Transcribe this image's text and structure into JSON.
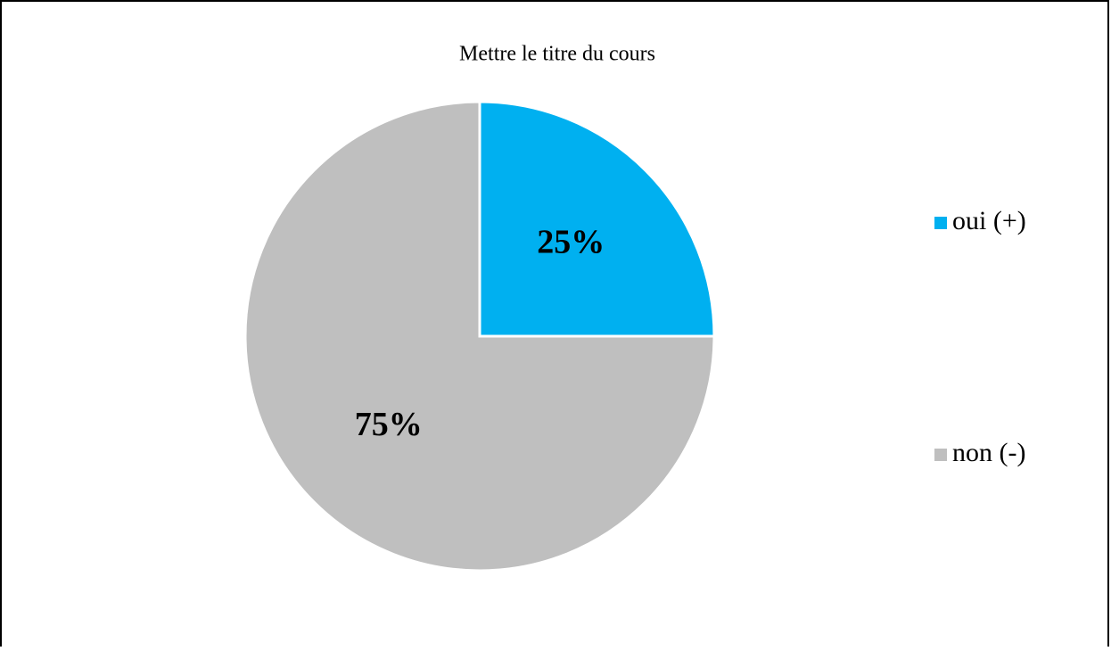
{
  "chart_data": {
    "type": "pie",
    "title": "Mettre le titre du cours",
    "categories": [
      "oui (+)",
      "non (-)"
    ],
    "values": [
      25,
      75
    ],
    "value_labels": [
      "25%",
      "75%"
    ],
    "colors": [
      "#00B0F0",
      "#BFBFBF"
    ],
    "legend": "right"
  }
}
